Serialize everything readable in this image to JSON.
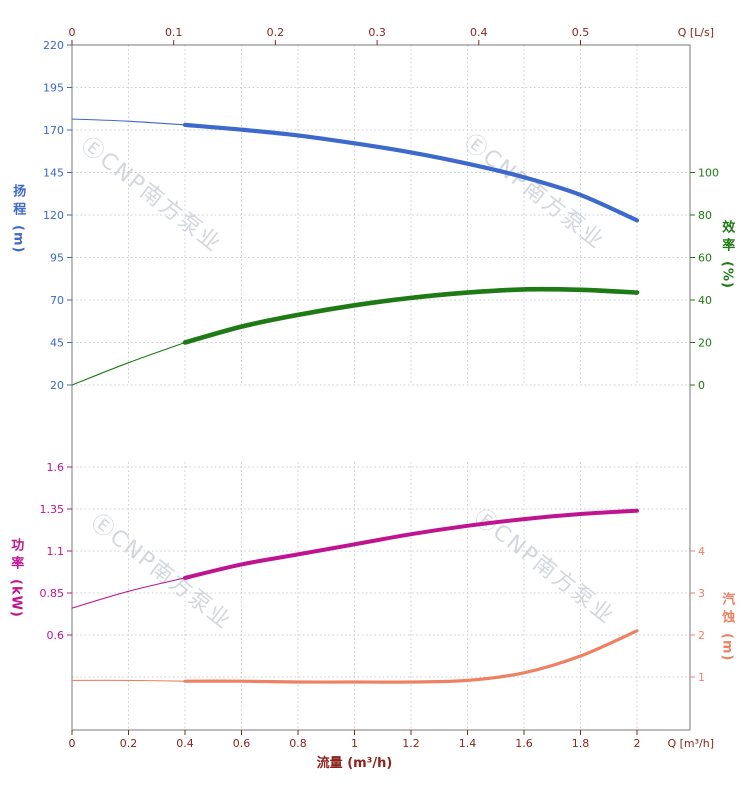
{
  "figure": {
    "background": "#ffffff",
    "frame_color": "#8f8f8f",
    "grid_color": "#c9cdd2",
    "watermark": {
      "text": "ⒺCNP南方泵业",
      "color": "#98a2b0"
    }
  },
  "chart_data": {
    "type": "line",
    "xlabel": "流量 (m³/h)",
    "x_bottom": {
      "corner_label": "Q [m³/h]",
      "color": "#8b241c",
      "ticks": [
        0,
        0.2,
        0.4,
        0.6,
        0.8,
        1,
        1.2,
        1.4,
        1.6,
        1.8,
        2
      ]
    },
    "x_top": {
      "corner_label": "Q [L/s]",
      "color": "#8b241c",
      "ticks": [
        0,
        0.1,
        0.2,
        0.3,
        0.4,
        0.5
      ]
    },
    "axes": {
      "head": {
        "title": "扬程",
        "unit": "(m)",
        "color": "#3d68cc",
        "ticks": [
          220,
          195,
          170,
          145,
          120,
          95,
          70,
          45,
          20
        ],
        "range": [
          20,
          220
        ]
      },
      "eff": {
        "title": "效率",
        "unit": "(%)",
        "color": "#1e7a14",
        "ticks": [
          100,
          80,
          60,
          40,
          20,
          0
        ],
        "range": [
          0,
          160
        ]
      },
      "power": {
        "title": "功率",
        "unit": "(kW)",
        "color": "#c01390",
        "ticks": [
          1.6,
          1.35,
          1.1,
          0.85,
          0.6
        ],
        "range": [
          0.03,
          1.64
        ]
      },
      "npsh": {
        "title": "汽蚀",
        "unit": "(m)",
        "color": "#ef8163",
        "ticks": [
          4,
          3,
          2,
          1
        ],
        "range": [
          -0.3,
          6.1
        ]
      }
    },
    "series": [
      {
        "id": "head",
        "axis": "head",
        "color": "#3d68cc",
        "stroke_width": 4.2,
        "split_q": 0.4,
        "q": [
          0,
          0.2,
          0.4,
          0.6,
          0.8,
          1,
          1.2,
          1.4,
          1.6,
          1.8,
          2
        ],
        "values": [
          176.5,
          175.2,
          173,
          170.2,
          166.8,
          162.2,
          156.8,
          150.2,
          142.2,
          131.8,
          116.8
        ]
      },
      {
        "id": "efficiency",
        "axis": "eff",
        "color": "#1e7a14",
        "stroke_width": 4.6,
        "split_q": 0.4,
        "q": [
          0,
          0.2,
          0.4,
          0.6,
          0.8,
          1,
          1.2,
          1.4,
          1.6,
          1.8,
          2
        ],
        "values": [
          0,
          10.5,
          20,
          27.5,
          33,
          37.5,
          41,
          43.5,
          45,
          44.8,
          43.5
        ]
      },
      {
        "id": "power",
        "axis": "power",
        "color": "#c01390",
        "stroke_width": 4,
        "split_q": 0.4,
        "q": [
          0,
          0.2,
          0.4,
          0.6,
          0.8,
          1,
          1.2,
          1.4,
          1.6,
          1.8,
          2
        ],
        "values": [
          0.76,
          0.86,
          0.94,
          1.02,
          1.08,
          1.14,
          1.2,
          1.25,
          1.29,
          1.32,
          1.34
        ]
      },
      {
        "id": "npsh",
        "axis": "npsh",
        "color": "#ef8163",
        "stroke_width": 3.2,
        "split_q": 0.4,
        "q": [
          0,
          0.2,
          0.4,
          0.6,
          0.8,
          1,
          1.2,
          1.4,
          1.6,
          1.8,
          2
        ],
        "values": [
          0.92,
          0.92,
          0.9,
          0.9,
          0.88,
          0.88,
          0.88,
          0.92,
          1.1,
          1.5,
          2.1
        ]
      }
    ]
  }
}
